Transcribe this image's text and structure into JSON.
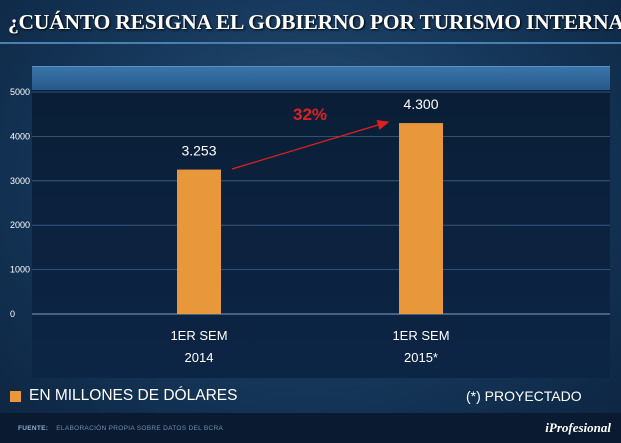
{
  "header": {
    "title": "¿CUÁNTO RESIGNA EL GOBIERNO POR TURISMO INTERNACIONAL?"
  },
  "chart_data": {
    "type": "bar",
    "categories": [
      [
        "1ER SEM",
        "2014"
      ],
      [
        "1ER SEM",
        "2015*"
      ]
    ],
    "values": [
      3253,
      4300
    ],
    "value_labels": [
      "3.253",
      "4.300"
    ],
    "yticks": [
      0,
      1000,
      2000,
      3000,
      4000,
      5000
    ],
    "ylim": [
      0,
      5000
    ],
    "grid": true,
    "bar_color": "#e8973a",
    "annotation": {
      "text": "32%",
      "color": "#e02020",
      "type": "growth-arrow"
    },
    "title": "¿CUÁNTO RESIGNA EL GOBIERNO POR TURISMO INTERNACIONAL?",
    "xlabel": "",
    "ylabel": ""
  },
  "legend": {
    "label": "EN MILLONES DE DÓLARES",
    "color": "#e8973a",
    "placement": "bottom-left"
  },
  "note": "(*) PROYECTADO",
  "footer": {
    "source_label": "FUENTE:",
    "source_text": "ELABORACIÓN PROPIA SOBRE DATOS DEL BCRA",
    "brand": "iProfesional"
  }
}
